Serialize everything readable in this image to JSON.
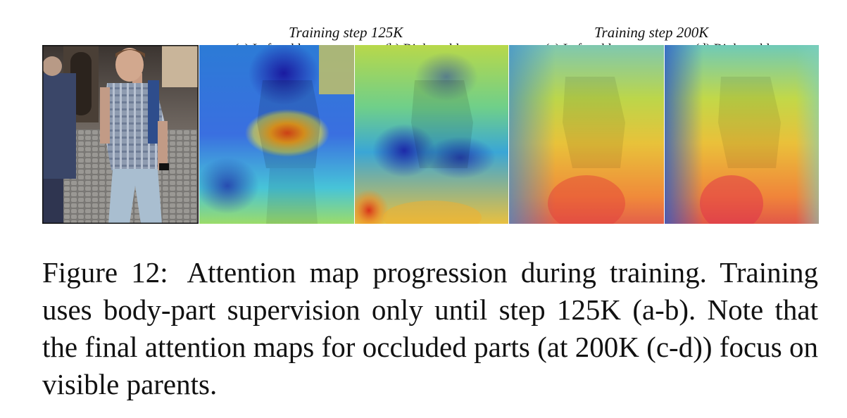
{
  "figure": {
    "group_titles": [
      "Training step 125K",
      "Training step 200K"
    ],
    "panel_labels": [
      "(a) Left ankle",
      "(b) Right ankle",
      "(c) Left ankle",
      "(d) Right ankle"
    ],
    "caption_label": "Figure 12:",
    "caption_text": "Attention map progression during training. Training uses body-part supervision only until step 125K (a-b). Note that the final attention maps for occluded parts (at 200K (c-d)) focus on visible parents."
  }
}
